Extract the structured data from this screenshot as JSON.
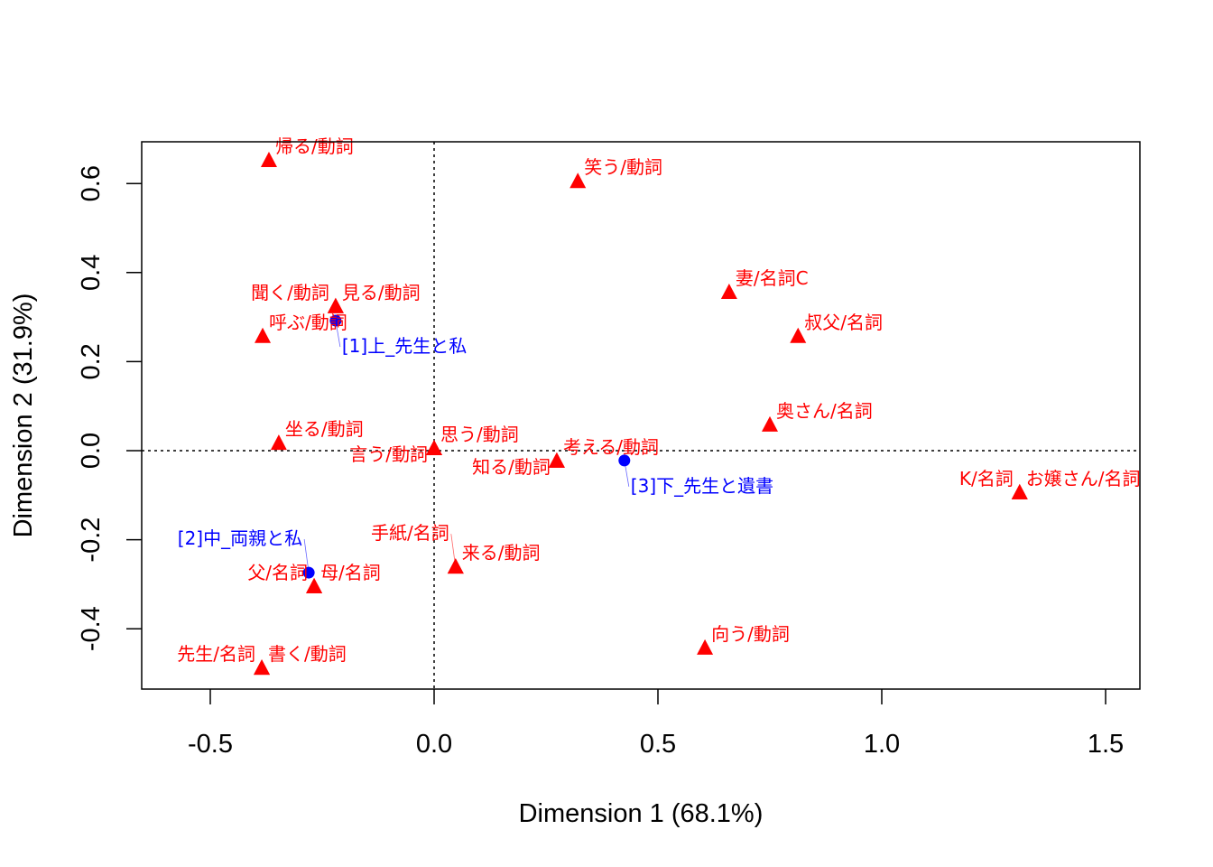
{
  "chart_data": {
    "type": "scatter",
    "title": "",
    "xlabel": "Dimension 1 (68.1%)",
    "ylabel": "Dimension 2 (31.9%)",
    "xlim": [
      -0.65,
      1.58
    ],
    "ylim": [
      -0.53,
      0.69
    ],
    "xticks": [
      "-0.5",
      "0.0",
      "0.5",
      "1.0",
      "1.5"
    ],
    "yticks": [
      "-0.4",
      "-0.2",
      "0.0",
      "0.2",
      "0.4",
      "0.6"
    ],
    "grid": false,
    "reference_lines": {
      "x": 0,
      "y": 0,
      "style": "dotted"
    },
    "colors": {
      "words": "#ff0000",
      "documents": "#0000ff"
    },
    "series": [
      {
        "marker": "triangle",
        "color": "#ff0000",
        "points": [
          {
            "label": "帰る/動詞",
            "x": -0.369,
            "y": 0.651
          },
          {
            "label": "笑う/動詞",
            "x": 0.321,
            "y": 0.604
          },
          {
            "label": "妻/名詞C",
            "x": 0.659,
            "y": 0.355
          },
          {
            "label": "叔父/名詞",
            "x": 0.813,
            "y": 0.256
          },
          {
            "label": "奥さん/名詞",
            "x": 0.75,
            "y": 0.057
          },
          {
            "label": "お嬢さん/名詞",
            "x": 1.308,
            "y": -0.095
          },
          {
            "label": "K/名詞",
            "x": 1.308,
            "y": -0.095
          },
          {
            "label": "向う/動詞",
            "x": 0.605,
            "y": -0.444
          },
          {
            "label": "書く/動詞",
            "x": -0.385,
            "y": -0.489
          },
          {
            "label": "先生/名詞",
            "x": -0.385,
            "y": -0.489
          },
          {
            "label": "坐る/動詞",
            "x": -0.347,
            "y": 0.016
          },
          {
            "label": "呼ぶ/動詞",
            "x": -0.383,
            "y": 0.256
          },
          {
            "label": "見る/動詞",
            "x": -0.22,
            "y": 0.323
          },
          {
            "label": "聞く/動詞",
            "x": -0.22,
            "y": 0.323
          },
          {
            "label": "思う/動詞",
            "x": 0.0,
            "y": 0.004
          },
          {
            "label": "言う/動詞",
            "x": 0.0,
            "y": 0.004
          },
          {
            "label": "考える/動詞",
            "x": 0.274,
            "y": -0.024
          },
          {
            "label": "知る/動詞",
            "x": 0.274,
            "y": -0.024
          },
          {
            "label": "母/名詞",
            "x": -0.268,
            "y": -0.306
          },
          {
            "label": "父/名詞",
            "x": -0.268,
            "y": -0.306
          },
          {
            "label": "来る/動詞",
            "x": 0.048,
            "y": -0.262
          },
          {
            "label": "手紙/名詞",
            "x": 0.048,
            "y": -0.262
          }
        ]
      },
      {
        "marker": "circle",
        "color": "#0000ff",
        "points": [
          {
            "label": "[1]上_先生と私",
            "x": -0.22,
            "y": 0.292
          },
          {
            "label": "[2]中_両親と私",
            "x": -0.28,
            "y": -0.274
          },
          {
            "label": "[3]下_先生と遺書",
            "x": 0.425,
            "y": -0.022
          }
        ]
      }
    ]
  }
}
